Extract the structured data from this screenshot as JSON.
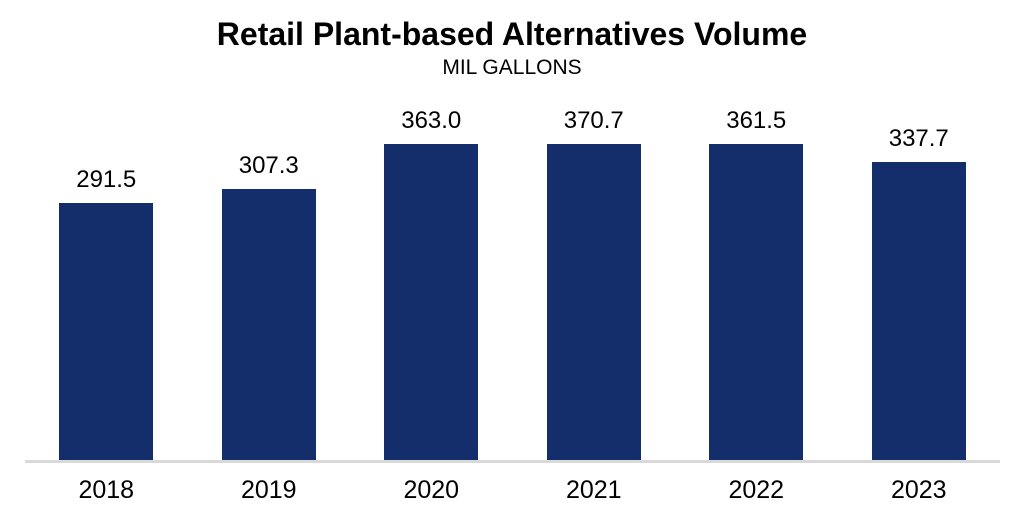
{
  "chart_data": {
    "type": "bar",
    "title": "Retail Plant-based Alternatives Volume",
    "subtitle": "MIL GALLONS",
    "categories": [
      "2018",
      "2019",
      "2020",
      "2021",
      "2022",
      "2023"
    ],
    "values": [
      291.5,
      307.3,
      363.0,
      370.7,
      361.5,
      337.7
    ],
    "value_labels": [
      "291.5",
      "307.3",
      "363.0",
      "370.7",
      "361.5",
      "337.7"
    ],
    "xlabel": "",
    "ylabel": "",
    "ylim": [
      0,
      400
    ],
    "grid": false,
    "legend": "none",
    "bar_color": "#132e6b",
    "axis_line_color": "#d9d9d9",
    "text_color": "#000000",
    "background_color": "#ffffff"
  }
}
